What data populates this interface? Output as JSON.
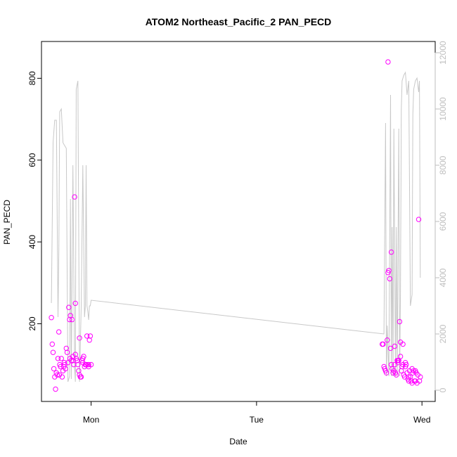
{
  "chart_data": {
    "type": "scatter",
    "title": "ATOM2 Northeast_Pacific_2 PAN_PECD",
    "xlabel": "Date",
    "ylabel": "PAN_PECD",
    "x_ticks": [
      {
        "label": "Mon",
        "x": 1.0
      },
      {
        "label": "Tue",
        "x": 2.0
      },
      {
        "label": "Wed",
        "x": 3.0
      }
    ],
    "xlim": [
      0.7,
      3.08
    ],
    "ylim": [
      10,
      890
    ],
    "y_ticks": [
      200,
      400,
      600,
      800
    ],
    "y2lim": [
      -400,
      12400
    ],
    "y2_ticks": [
      0,
      2000,
      4000,
      6000,
      8000,
      10000,
      12000
    ],
    "grid": false,
    "points_color": "#ff00ff",
    "line_color": "#c8c8c8",
    "series": [
      {
        "axis": "left",
        "kind": "points",
        "x": [
          0.76,
          0.765,
          0.77,
          0.775,
          0.78,
          0.785,
          0.79,
          0.795,
          0.8,
          0.805,
          0.81,
          0.815,
          0.82,
          0.825,
          0.83,
          0.835,
          0.84,
          0.845,
          0.85,
          0.855,
          0.86,
          0.865,
          0.87,
          0.875,
          0.88,
          0.885,
          0.89,
          0.895,
          0.9,
          0.905,
          0.91,
          0.915,
          0.92,
          0.925,
          0.93,
          0.935,
          0.94,
          0.945,
          0.95,
          0.955,
          0.96,
          0.965,
          0.97,
          0.975,
          0.98,
          0.985,
          0.99,
          0.995,
          1.0,
          0.808,
          0.838,
          0.872,
          0.89,
          0.905,
          0.93,
          0.95,
          0.97,
          0.985,
          2.76,
          2.765,
          2.77,
          2.775,
          2.78,
          2.785,
          2.79,
          2.795,
          2.8,
          2.805,
          2.81,
          2.815,
          2.82,
          2.825,
          2.83,
          2.835,
          2.84,
          2.845,
          2.85,
          2.855,
          2.86,
          2.865,
          2.87,
          2.875,
          2.88,
          2.885,
          2.89,
          2.895,
          2.9,
          2.905,
          2.91,
          2.915,
          2.92,
          2.925,
          2.93,
          2.935,
          2.94,
          2.945,
          2.95,
          2.955,
          2.96,
          2.965,
          2.97,
          2.975,
          2.98,
          2.985,
          2.99,
          2.795,
          2.815,
          2.835,
          2.855,
          2.87,
          2.885,
          2.9,
          2.92,
          2.94,
          2.96
        ],
        "y": [
          215,
          150,
          130,
          90,
          70,
          40,
          80,
          75,
          115,
          180,
          100,
          95,
          115,
          70,
          85,
          95,
          100,
          90,
          140,
          130,
          105,
          240,
          210,
          220,
          110,
          210,
          110,
          100,
          510,
          125,
          115,
          110,
          100,
          85,
          75,
          70,
          70,
          110,
          115,
          120,
          95,
          100,
          100,
          170,
          100,
          100,
          160,
          170,
          100,
          75,
          105,
          115,
          120,
          250,
          165,
          105,
          100,
          95,
          150,
          150,
          95,
          90,
          85,
          80,
          160,
          325,
          330,
          310,
          140,
          100,
          90,
          80,
          85,
          145,
          80,
          75,
          110,
          105,
          110,
          205,
          155,
          85,
          95,
          100,
          75,
          70,
          105,
          100,
          80,
          65,
          60,
          85,
          70,
          60,
          55,
          80,
          85,
          60,
          85,
          80,
          55,
          75,
          455,
          60,
          70,
          840,
          375,
          100,
          110,
          120,
          150,
          95,
          70,
          90,
          60
        ],
        "y_note": "estimated from axis"
      },
      {
        "axis": "right",
        "kind": "line",
        "x": [
          0.76,
          0.77,
          0.78,
          0.79,
          0.8,
          0.805,
          0.81,
          0.82,
          0.83,
          0.84,
          0.85,
          0.86,
          0.87,
          0.875,
          0.88,
          0.89,
          0.9,
          0.905,
          0.91,
          0.92,
          0.93,
          0.94,
          0.95,
          0.96,
          0.965,
          0.97,
          0.975,
          0.98,
          0.985,
          0.99,
          0.995,
          1.0,
          2.77,
          2.78,
          2.785,
          2.79,
          2.8,
          2.81,
          2.815,
          2.82,
          2.825,
          2.83,
          2.84,
          2.845,
          2.85,
          2.86,
          2.865,
          2.87,
          2.875,
          2.88,
          2.885,
          2.89,
          2.9,
          2.91,
          2.92,
          2.93,
          2.94,
          2.945,
          2.95,
          2.96,
          2.97,
          2.98,
          2.985,
          2.99
        ],
        "y": [
          3100,
          8800,
          9600,
          9600,
          2600,
          5000,
          9900,
          10000,
          8800,
          8700,
          8600,
          300,
          500,
          6800,
          400,
          8000,
          800,
          300,
          10700,
          11000,
          300,
          3000,
          8000,
          2600,
          3000,
          8000,
          3000,
          2800,
          2500,
          3000,
          3000,
          3200,
          2000,
          9500,
          500,
          2300,
          500,
          10500,
          500,
          5800,
          500,
          9300,
          500,
          5800,
          500,
          9300,
          500,
          3400,
          10000,
          11000,
          11100,
          11200,
          11300,
          10500,
          11000,
          3000,
          3400,
          9800,
          10700,
          11000,
          11100,
          10600,
          11000,
          4000
        ]
      }
    ]
  }
}
